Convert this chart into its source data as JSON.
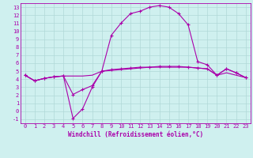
{
  "xlabel": "Windchill (Refroidissement éolien,°C)",
  "xlim": [
    -0.5,
    23.5
  ],
  "ylim": [
    -1.5,
    13.5
  ],
  "xticks": [
    0,
    1,
    2,
    3,
    4,
    5,
    6,
    7,
    8,
    9,
    10,
    11,
    12,
    13,
    14,
    15,
    16,
    17,
    18,
    19,
    20,
    21,
    22,
    23
  ],
  "yticks": [
    -1,
    0,
    1,
    2,
    3,
    4,
    5,
    6,
    7,
    8,
    9,
    10,
    11,
    12,
    13
  ],
  "bg_color": "#cff0ef",
  "grid_color": "#b0d8d8",
  "line_color": "#aa00aa",
  "series1_x": [
    0,
    1,
    2,
    3,
    4,
    5,
    6,
    7,
    8,
    9,
    10,
    11,
    12,
    13,
    14,
    15,
    16,
    17,
    18,
    19,
    20,
    21,
    22,
    23
  ],
  "series1_y": [
    4.5,
    3.8,
    4.1,
    4.3,
    4.4,
    -0.9,
    0.3,
    3.0,
    5.0,
    9.5,
    11.0,
    12.2,
    12.5,
    13.0,
    13.2,
    13.0,
    12.2,
    10.8,
    6.2,
    5.8,
    4.5,
    5.3,
    4.8,
    4.2
  ],
  "series2_x": [
    0,
    1,
    2,
    3,
    4,
    5,
    6,
    7,
    8,
    9,
    10,
    11,
    12,
    13,
    14,
    15,
    16,
    17,
    18,
    19,
    20,
    21,
    22,
    23
  ],
  "series2_y": [
    4.5,
    3.8,
    4.1,
    4.3,
    4.4,
    2.1,
    2.7,
    3.2,
    5.0,
    5.2,
    5.3,
    5.4,
    5.5,
    5.5,
    5.6,
    5.6,
    5.6,
    5.5,
    5.4,
    5.3,
    4.5,
    5.3,
    4.8,
    4.2
  ],
  "series3_x": [
    0,
    1,
    2,
    3,
    4,
    5,
    6,
    7,
    8,
    9,
    10,
    11,
    12,
    13,
    14,
    15,
    16,
    17,
    18,
    19,
    20,
    21,
    22,
    23
  ],
  "series3_y": [
    4.5,
    3.8,
    4.1,
    4.3,
    4.4,
    4.4,
    4.4,
    4.5,
    5.0,
    5.1,
    5.2,
    5.3,
    5.4,
    5.5,
    5.5,
    5.5,
    5.5,
    5.5,
    5.4,
    5.3,
    4.5,
    4.8,
    4.5,
    4.2
  ],
  "tick_fontsize": 5,
  "xlabel_fontsize": 5.5
}
